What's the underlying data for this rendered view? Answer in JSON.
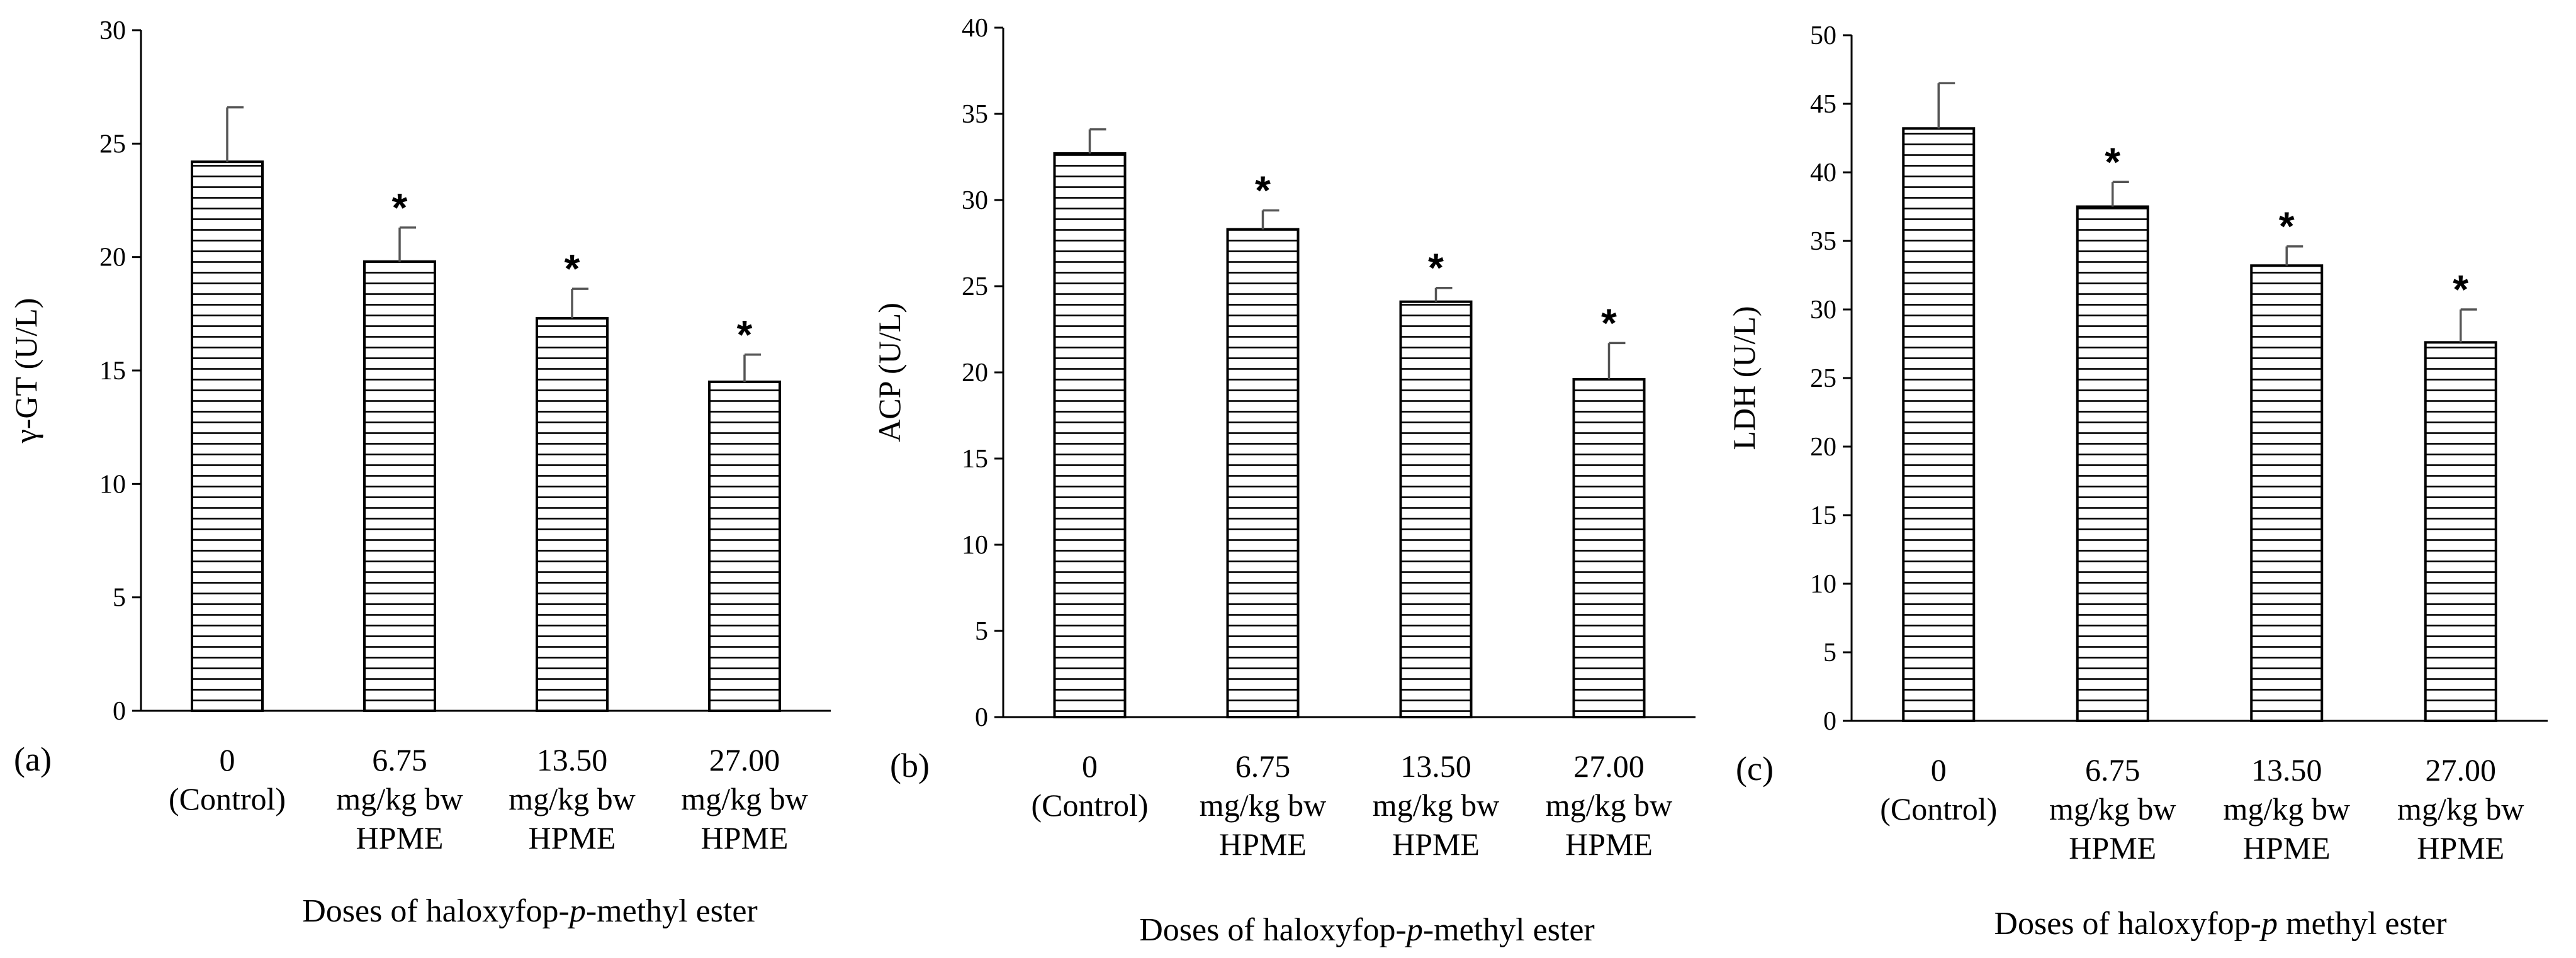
{
  "chart_data": [
    {
      "type": "bar",
      "panel_label": "(a)",
      "ylabel": "γ-GT (U/L)",
      "xlabel": {
        "prefix": "Doses of haloxyfop-",
        "italic": "p",
        "suffix": "-methyl ester"
      },
      "ylim": [
        0,
        30
      ],
      "yticks": [
        0,
        5,
        10,
        15,
        20,
        25,
        30
      ],
      "categories": [
        [
          "0",
          "(Control)"
        ],
        [
          "6.75",
          "mg/kg bw",
          "HPME"
        ],
        [
          "13.50",
          "mg/kg bw",
          "HPME"
        ],
        [
          "27.00",
          "mg/kg bw",
          "HPME"
        ]
      ],
      "values": [
        24.2,
        19.8,
        17.3,
        14.5
      ],
      "errors": [
        2.4,
        1.5,
        1.3,
        1.2
      ],
      "significance": [
        "",
        "*",
        "*",
        "*"
      ],
      "pattern": "horizontal-lines"
    },
    {
      "type": "bar",
      "panel_label": "(b)",
      "ylabel": "ACP (U/L)",
      "xlabel": {
        "prefix": "Doses of haloxyfop-",
        "italic": "p",
        "suffix": "-methyl ester"
      },
      "ylim": [
        0,
        40
      ],
      "yticks": [
        0,
        5,
        10,
        15,
        20,
        25,
        30,
        35,
        40
      ],
      "categories": [
        [
          "0",
          "(Control)"
        ],
        [
          "6.75",
          "mg/kg bw",
          "HPME"
        ],
        [
          "13.50",
          "mg/kg bw",
          "HPME"
        ],
        [
          "27.00",
          "mg/kg bw",
          "HPME"
        ]
      ],
      "values": [
        32.7,
        28.3,
        24.1,
        19.6
      ],
      "errors": [
        1.4,
        1.1,
        0.8,
        2.1
      ],
      "significance": [
        "",
        "*",
        "*",
        "*"
      ],
      "pattern": "horizontal-lines"
    },
    {
      "type": "bar",
      "panel_label": "(c)",
      "ylabel": "LDH (U/L)",
      "xlabel": {
        "prefix": "Doses of haloxyfop-",
        "italic": "p",
        "suffix": " methyl ester"
      },
      "ylim": [
        0,
        50
      ],
      "yticks": [
        0,
        5,
        10,
        15,
        20,
        25,
        30,
        35,
        40,
        45,
        50
      ],
      "categories": [
        [
          "0",
          "(Control)"
        ],
        [
          "6.75",
          "mg/kg bw",
          "HPME"
        ],
        [
          "13.50",
          "mg/kg bw",
          "HPME"
        ],
        [
          "27.00",
          "mg/kg bw",
          "HPME"
        ]
      ],
      "values": [
        43.2,
        37.5,
        33.2,
        27.6
      ],
      "errors": [
        3.3,
        1.8,
        1.4,
        2.4
      ],
      "significance": [
        "",
        "*",
        "*",
        "*"
      ],
      "pattern": "horizontal-lines"
    }
  ]
}
